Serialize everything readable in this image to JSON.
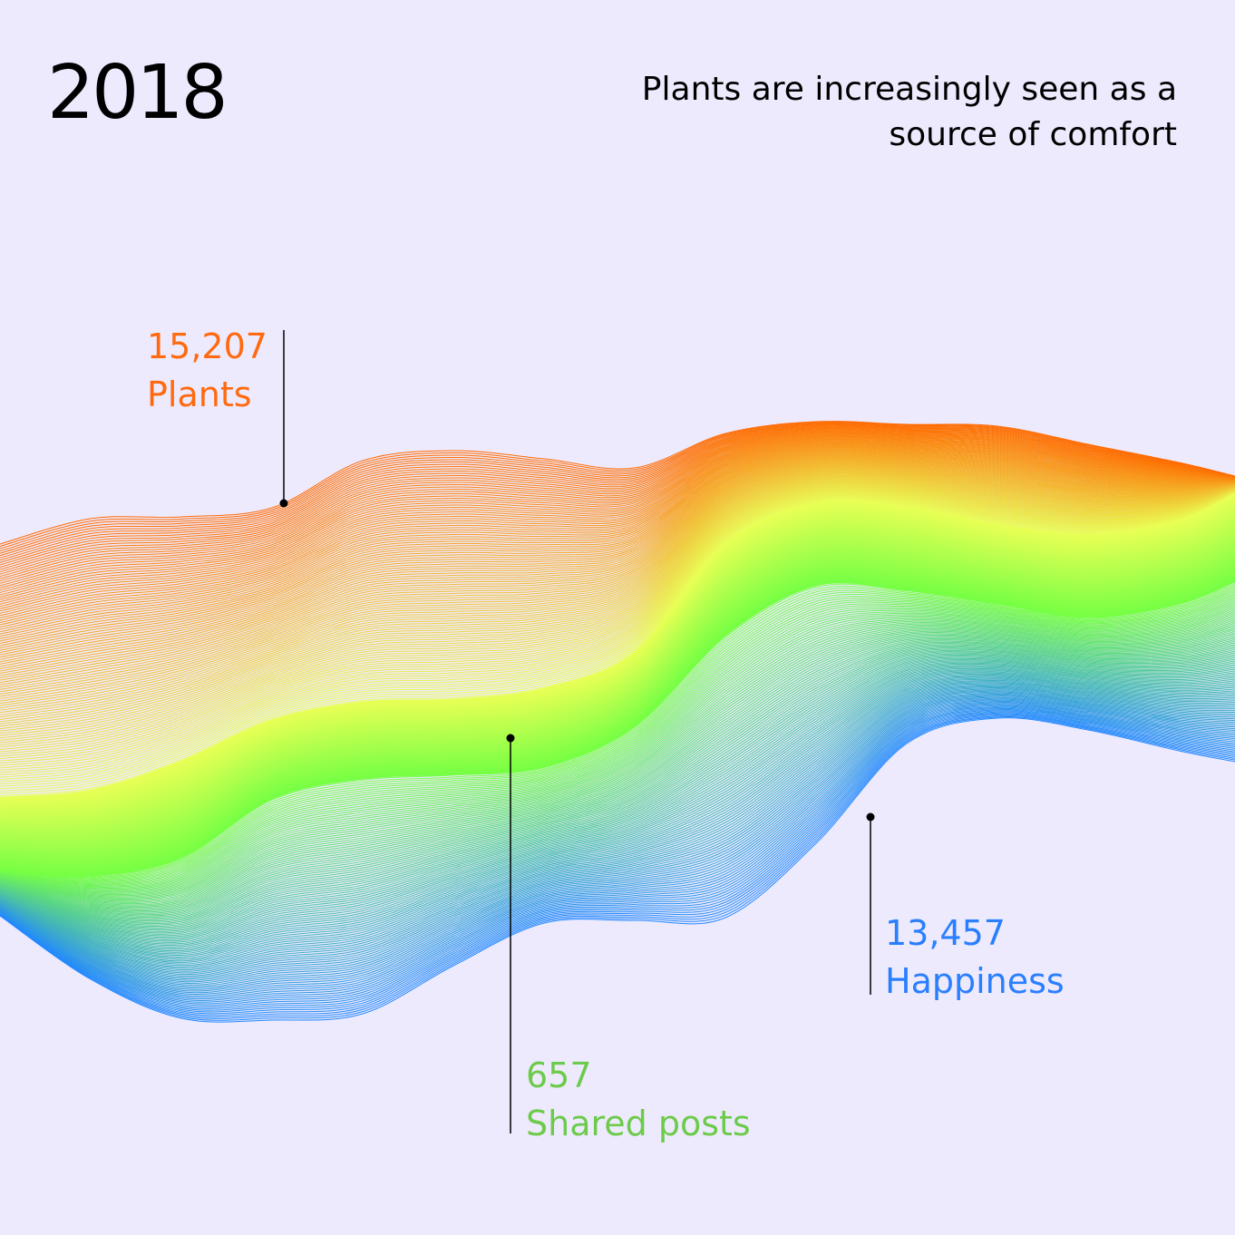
{
  "header": {
    "year": "2018",
    "headline": "Plants are increasingly seen as a source of comfort"
  },
  "chart_data": {
    "type": "area",
    "title": "Plants are increasingly seen as a source of comfort",
    "subtitle": "2018",
    "annotations": [
      {
        "name": "Plants",
        "value": "15,207",
        "color": "#FF6A10"
      },
      {
        "name": "Shared posts",
        "value": "657",
        "color": "#6CCB4A"
      },
      {
        "name": "Happiness",
        "value": "13,457",
        "color": "#2A7FFF"
      }
    ],
    "gradient_colors": [
      "#FF6A00",
      "#F2E060",
      "#E8FF55",
      "#77FF44",
      "#2288FF"
    ],
    "background": "#EEEAFE"
  }
}
